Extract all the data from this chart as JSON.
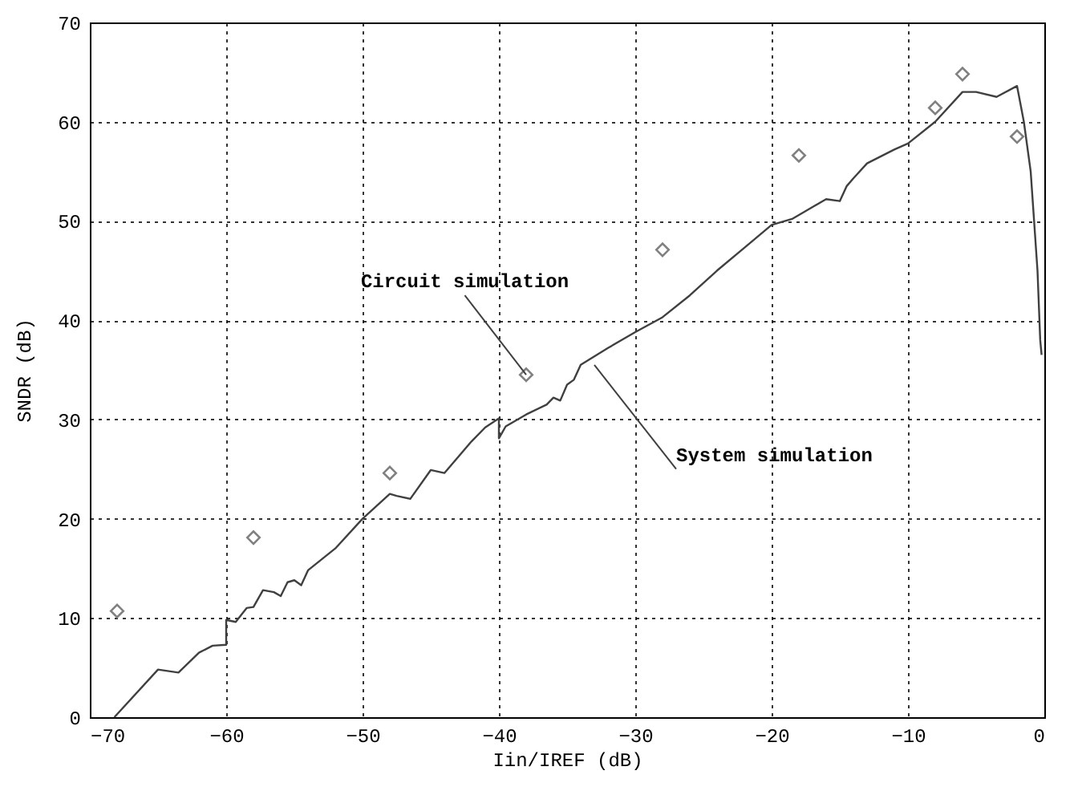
{
  "chart_data": {
    "type": "line",
    "xlabel": "Iin/IREF (dB)",
    "ylabel": "SNDR (dB)",
    "xlim": [
      -70,
      0
    ],
    "xticks": [
      -70,
      -60,
      -50,
      -40,
      -30,
      -20,
      -10,
      0
    ],
    "ylim": [
      0,
      70
    ],
    "yticks": [
      0,
      10,
      20,
      30,
      40,
      50,
      60,
      70
    ],
    "grid": true,
    "series": [
      {
        "color": "#404040",
        "line_style": "solid",
        "marker": "none",
        "x": [
          -68.2,
          -65,
          -63.5,
          -62,
          -61,
          -60,
          -60,
          -59.3,
          -58.5,
          -58,
          -57.3,
          -56.5,
          -56,
          -55.5,
          -55,
          -54.5,
          -54,
          -52,
          -50,
          -48,
          -47.5,
          -46.5,
          -45,
          -44,
          -42,
          -41,
          -40,
          -40,
          -39.5,
          -38,
          -36.5,
          -36,
          -35.5,
          -35,
          -34.5,
          -34,
          -32,
          -30,
          -28,
          -26,
          -24,
          -22,
          -20,
          -19.5,
          -18.5,
          -16,
          -15,
          -14.5,
          -14,
          -13,
          -11,
          -10,
          -8,
          -6,
          -5,
          -3.5,
          -2,
          -1.5,
          -1,
          -0.5,
          -0.3,
          -0.2
        ],
        "values": [
          0,
          4.8,
          4.5,
          6.5,
          7.2,
          7.3,
          9.8,
          9.6,
          11,
          11.1,
          12.8,
          12.6,
          12.2,
          13.6,
          13.8,
          13.3,
          14.8,
          17,
          20,
          22.5,
          22.3,
          22,
          24.9,
          24.6,
          27.8,
          29.2,
          30.1,
          28.1,
          29.3,
          30.5,
          31.5,
          32.2,
          31.9,
          33.5,
          34,
          35.5,
          37.2,
          38.8,
          40.3,
          42.5,
          45,
          47.3,
          49.6,
          49.8,
          50.2,
          52.2,
          52,
          53.5,
          54.3,
          55.8,
          57.2,
          57.8,
          60,
          63,
          63,
          62.5,
          63.6,
          60,
          55,
          45,
          38,
          36.5
        ]
      },
      {
        "type": "scatter",
        "color": "#808080",
        "marker": "diamond",
        "x": [
          -68,
          -58,
          -48,
          -38,
          -28,
          -18,
          -8,
          -6,
          -2
        ],
        "values": [
          10.7,
          18.1,
          24.6,
          34.5,
          47.1,
          56.6,
          61.4,
          64.8,
          58.5
        ]
      }
    ],
    "annotations": [
      {
        "text": "Circuit simulation",
        "x": -38,
        "y": 34.5
      },
      {
        "text": "System simulation",
        "x": -33,
        "y": 35.5
      }
    ]
  }
}
